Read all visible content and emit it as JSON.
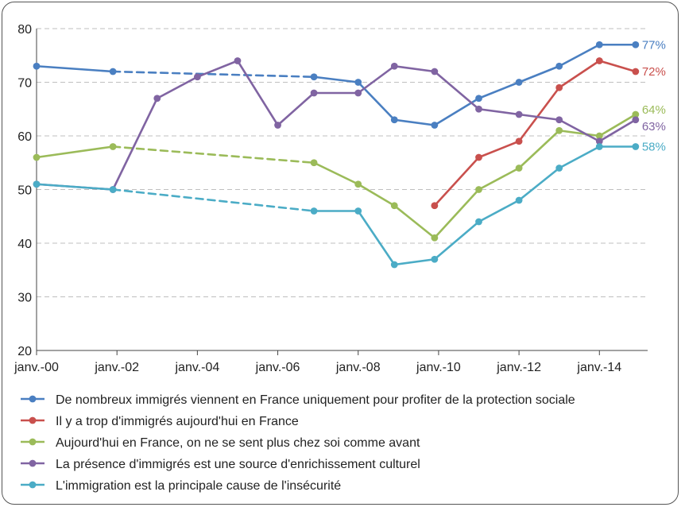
{
  "chart_data": {
    "type": "line",
    "xticks": [
      "janv.-00",
      "janv.-02",
      "janv.-04",
      "janv.-06",
      "janv.-08",
      "janv.-10",
      "janv.-12",
      "janv.-14"
    ],
    "ylim": [
      20,
      80
    ],
    "yticks": [
      20,
      30,
      40,
      50,
      60,
      70,
      80
    ],
    "grid": "horizontal dashed",
    "legend_position": "bottom",
    "series": [
      {
        "name": "De nombreux immigrés viennent en France uniquement pour profiter de la protection sociale",
        "color": "#4a7fc1",
        "end_label": "77%",
        "points": [
          [
            2000.0,
            73
          ],
          [
            2001.9,
            72
          ],
          [
            2003.3,
            null
          ],
          [
            2006.9,
            71
          ],
          [
            2008.0,
            70
          ],
          [
            2008.9,
            63
          ],
          [
            2009.9,
            62
          ],
          [
            2011.0,
            67
          ],
          [
            2012.0,
            70
          ],
          [
            2013.0,
            73
          ],
          [
            2014.0,
            77
          ],
          [
            2014.9,
            77
          ]
        ],
        "dashed_from": 2001.9,
        "dashed_to": 2006.9
      },
      {
        "name": "Il y a trop d'immigrés aujourd'hui en France",
        "color": "#c9504d",
        "end_label": "72%",
        "points": [
          [
            2009.9,
            47
          ],
          [
            2011.0,
            56
          ],
          [
            2012.0,
            59
          ],
          [
            2013.0,
            69
          ],
          [
            2014.0,
            74
          ],
          [
            2014.9,
            72
          ]
        ]
      },
      {
        "name": "Aujourd'hui en France, on ne se sent plus chez soi comme avant",
        "color": "#9bbb59",
        "end_label": "64%",
        "points": [
          [
            2000.0,
            56
          ],
          [
            2001.9,
            58
          ],
          [
            2006.9,
            55
          ],
          [
            2008.0,
            51
          ],
          [
            2008.9,
            47
          ],
          [
            2009.9,
            41
          ],
          [
            2011.0,
            50
          ],
          [
            2012.0,
            54
          ],
          [
            2013.0,
            61
          ],
          [
            2014.0,
            60
          ],
          [
            2014.9,
            64
          ]
        ],
        "dashed_from": 2001.9,
        "dashed_to": 2006.9
      },
      {
        "name": "La présence d'immigrés est une source d'enrichissement culturel",
        "color": "#8064a2",
        "end_label": "63%",
        "points": [
          [
            2000.0,
            51
          ],
          [
            2001.9,
            50
          ],
          [
            2003.0,
            67
          ],
          [
            2004.0,
            71
          ],
          [
            2005.0,
            74
          ],
          [
            2006.0,
            62
          ],
          [
            2006.9,
            68
          ],
          [
            2008.0,
            68
          ],
          [
            2008.9,
            73
          ],
          [
            2009.9,
            72
          ],
          [
            2011.0,
            65
          ],
          [
            2012.0,
            64
          ],
          [
            2013.0,
            63
          ],
          [
            2014.0,
            59
          ],
          [
            2014.9,
            63
          ]
        ]
      },
      {
        "name": "L'immigration est la principale cause de l'insécurité",
        "color": "#4bacc6",
        "end_label": "58%",
        "points": [
          [
            2000.0,
            51
          ],
          [
            2001.9,
            50
          ],
          [
            2006.9,
            46
          ],
          [
            2008.0,
            46
          ],
          [
            2008.9,
            36
          ],
          [
            2009.9,
            37
          ],
          [
            2011.0,
            44
          ],
          [
            2012.0,
            48
          ],
          [
            2013.0,
            54
          ],
          [
            2014.0,
            58
          ],
          [
            2014.9,
            58
          ]
        ],
        "dashed_from": 2001.9,
        "dashed_to": 2006.9
      }
    ]
  }
}
